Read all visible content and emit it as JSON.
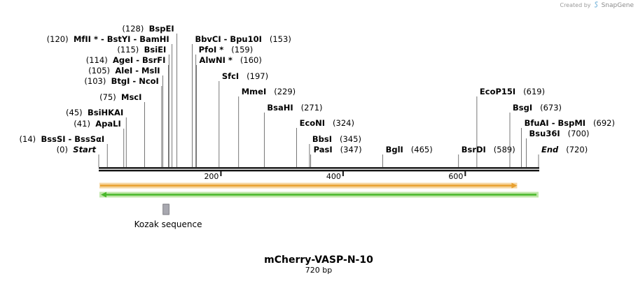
{
  "credit": {
    "prefix": "Created by",
    "brand": "SnapGene"
  },
  "map": {
    "title": "mCherry-VASP-N-10",
    "length_label": "720 bp",
    "length_bp": 720
  },
  "ruler": {
    "ticks": [
      200,
      400,
      600
    ]
  },
  "sites": [
    {
      "name": "Start",
      "pos": 0,
      "italic": true
    },
    {
      "name": "BssSI  -  BssSαI",
      "pos": 14
    },
    {
      "name": "ApaLI",
      "pos": 41
    },
    {
      "name": "BsiHKAI",
      "pos": 45
    },
    {
      "name": "MscI",
      "pos": 75
    },
    {
      "name": "BtgI  -  NcoI",
      "pos": 103
    },
    {
      "name": "AleI  -  MslI",
      "pos": 105
    },
    {
      "name": "AgeI  -  BsrFI",
      "pos": 114
    },
    {
      "name": "BsiEI",
      "pos": 115
    },
    {
      "name": "MfII *  -  BstYI  -  BamHI",
      "pos": 120
    },
    {
      "name": "BspEI",
      "pos": 128
    },
    {
      "name": "BbvCI  -  Bpu10I",
      "pos": 153
    },
    {
      "name": "PfoI *",
      "pos": 159
    },
    {
      "name": "AlwNI *",
      "pos": 160
    },
    {
      "name": "SfcI",
      "pos": 197
    },
    {
      "name": "MmeI",
      "pos": 229
    },
    {
      "name": "BsaHI",
      "pos": 271
    },
    {
      "name": "EcoNI",
      "pos": 324
    },
    {
      "name": "BbsI",
      "pos": 345
    },
    {
      "name": "PasI",
      "pos": 347
    },
    {
      "name": "BglI",
      "pos": 465
    },
    {
      "name": "BsrDI",
      "pos": 589
    },
    {
      "name": "EcoP15I",
      "pos": 619
    },
    {
      "name": "BsgI",
      "pos": 673
    },
    {
      "name": "BfuAI  -  BspMI",
      "pos": 692
    },
    {
      "name": "Bsu36I",
      "pos": 700
    },
    {
      "name": "End",
      "pos": 720,
      "italic": true
    }
  ],
  "features": [
    {
      "name": "orange-feature-arrow",
      "start": 0,
      "end": 685,
      "direction": "forward",
      "color": "#e8a030",
      "edge": "#f6d6a0"
    },
    {
      "name": "green-feature-arrow",
      "start": 0,
      "end": 720,
      "direction": "reverse",
      "color": "#49b82b",
      "edge": "#bfe6a8"
    },
    {
      "name": "kozak-sequence",
      "label": "Kozak sequence",
      "start": 104,
      "end": 114,
      "color": "#a8a8b0"
    }
  ]
}
